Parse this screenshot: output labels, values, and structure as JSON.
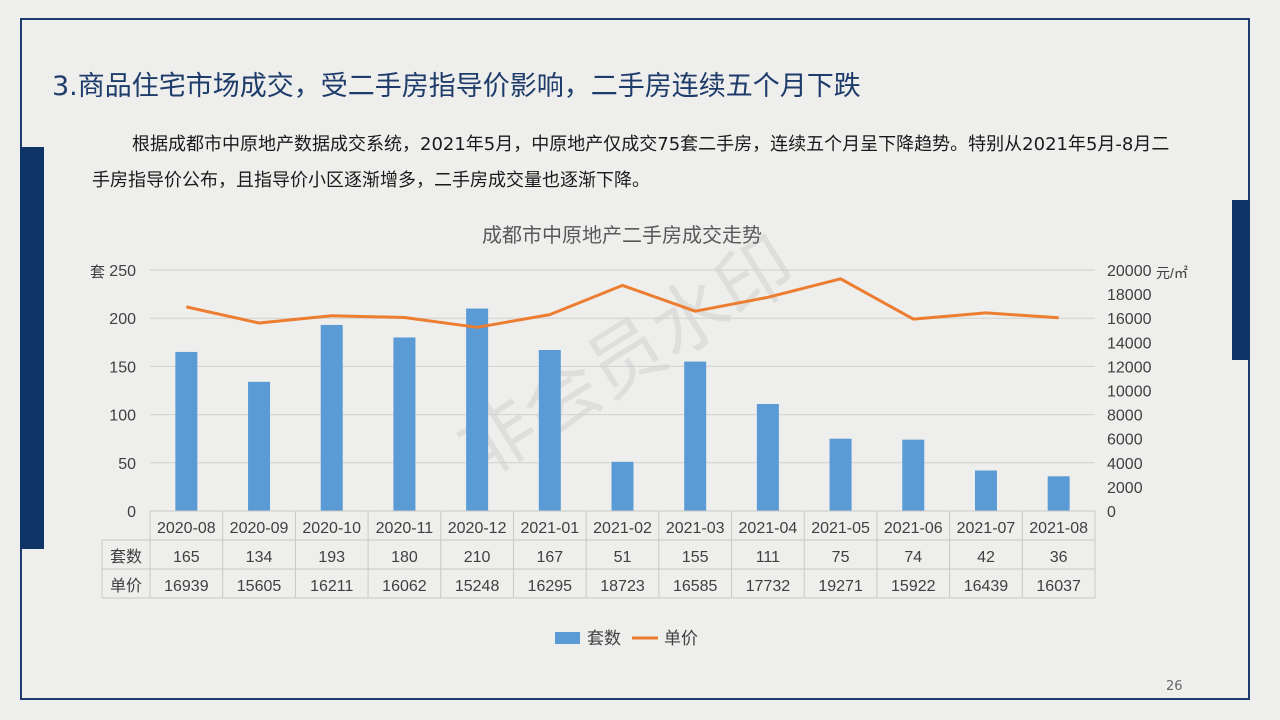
{
  "slide": {
    "title": "3.商品住宅市场成交，受二手房指导价影响，二手房连续五个月下跌",
    "paragraph": "根据成都市中原地产数据成交系统，2021年5月，中原地产仅成交75套二手房，连续五个月呈下降趋势。特别从2021年5月-8月二手房指导价公布，且指导价小区逐渐增多，二手房成交量也逐渐下降。",
    "page_number": "26",
    "watermark": "非会员水印"
  },
  "colors": {
    "bar": "#5b9bd5",
    "line": "#ed7d31",
    "accent": "#0e3566",
    "title": "#1e3c6a"
  },
  "chart_data": {
    "type": "bar",
    "title": "成都市中原地产二手房成交走势",
    "categories": [
      "2020-08",
      "2020-09",
      "2020-10",
      "2020-11",
      "2020-12",
      "2021-01",
      "2021-02",
      "2021-03",
      "2021-04",
      "2021-05",
      "2021-06",
      "2021-07",
      "2021-08"
    ],
    "series": [
      {
        "name": "套数",
        "type": "bar",
        "axis": "left",
        "values": [
          165,
          134,
          193,
          180,
          210,
          167,
          51,
          155,
          111,
          75,
          74,
          42,
          36
        ]
      },
      {
        "name": "单价",
        "type": "line",
        "axis": "right",
        "values": [
          16939,
          15605,
          16211,
          16062,
          15248,
          16295,
          18723,
          16585,
          17732,
          19271,
          15922,
          16439,
          16037
        ]
      }
    ],
    "ylabel_left": "套",
    "ylabel_right": "元/㎡",
    "ylim_left": [
      0,
      250
    ],
    "ylim_right": [
      0,
      20000
    ],
    "yticks_left": [
      "0",
      "50",
      "100",
      "150",
      "200",
      "250"
    ],
    "yticks_right": [
      "0",
      "2000",
      "4000",
      "6000",
      "8000",
      "10000",
      "12000",
      "14000",
      "16000",
      "18000",
      "20000"
    ],
    "grid": true,
    "legend": "bottom",
    "data_table": true
  }
}
